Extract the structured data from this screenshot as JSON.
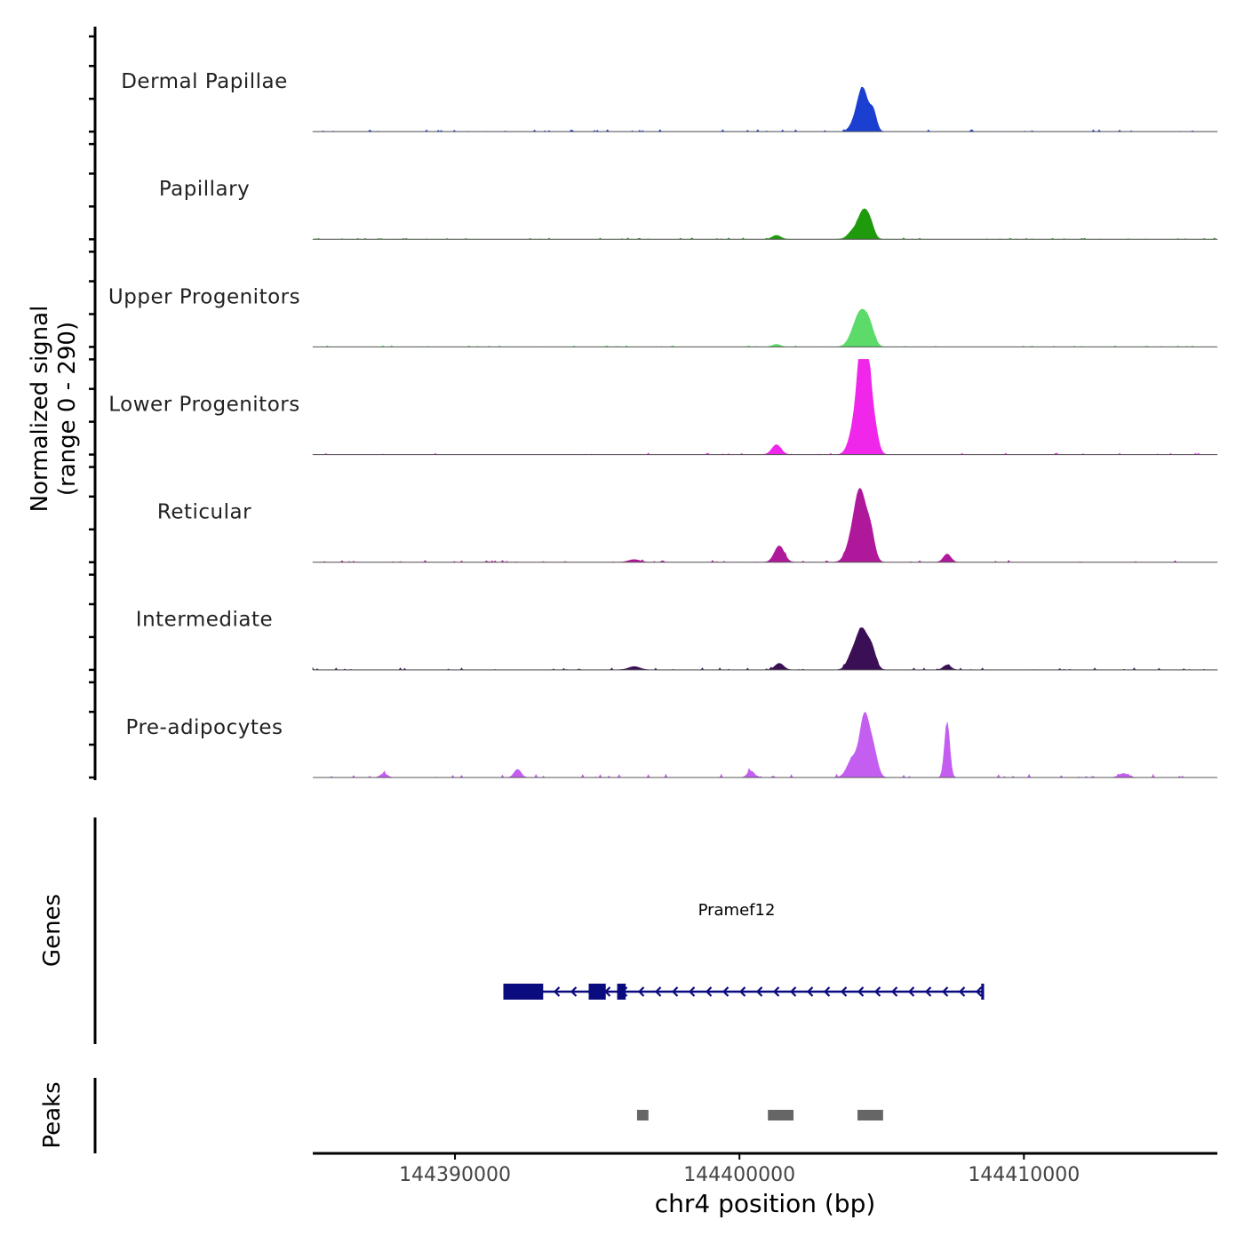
{
  "chart_data": {
    "type": "area",
    "title": "",
    "region": {
      "chrom": "chr4",
      "start": 144385000,
      "end": 144416800
    },
    "xlabel": "chr4 position (bp)",
    "x_ticks": [
      144390000,
      144400000,
      144410000
    ],
    "x_tick_labels": [
      "144390000",
      "144400000",
      "144410000"
    ],
    "ylabel_line1": "Normalized signal",
    "ylabel_line2": "(range 0 - 290)",
    "ylim": [
      0,
      290
    ],
    "coverage_tracks": [
      {
        "name": "Dermal Papillae",
        "color": "#1a3fd1",
        "noise": 6,
        "peaks": [
          {
            "pos": 144404350,
            "height": 120,
            "width": 170
          },
          {
            "pos": 144404700,
            "height": 60,
            "width": 120
          },
          {
            "pos": 144404100,
            "height": 35,
            "width": 180
          }
        ]
      },
      {
        "name": "Papillary",
        "color": "#1e9a0c",
        "noise": 4,
        "peaks": [
          {
            "pos": 144404350,
            "height": 80,
            "width": 170
          },
          {
            "pos": 144404600,
            "height": 40,
            "width": 140
          },
          {
            "pos": 144404000,
            "height": 25,
            "width": 180
          },
          {
            "pos": 144401300,
            "height": 12,
            "width": 150
          }
        ]
      },
      {
        "name": "Upper Progenitors",
        "color": "#5cdb6a",
        "noise": 4,
        "peaks": [
          {
            "pos": 144404300,
            "height": 100,
            "width": 220
          },
          {
            "pos": 144404600,
            "height": 40,
            "width": 160
          },
          {
            "pos": 144404000,
            "height": 25,
            "width": 200
          },
          {
            "pos": 144401300,
            "height": 8,
            "width": 140
          }
        ]
      },
      {
        "name": "Lower Progenitors",
        "color": "#f026ea",
        "noise": 5,
        "peaks": [
          {
            "pos": 144404300,
            "height": 280,
            "width": 170
          },
          {
            "pos": 144404450,
            "height": 210,
            "width": 140
          },
          {
            "pos": 144404700,
            "height": 100,
            "width": 150
          },
          {
            "pos": 144404000,
            "height": 60,
            "width": 180
          },
          {
            "pos": 144401300,
            "height": 30,
            "width": 160
          }
        ]
      },
      {
        "name": "Reticular",
        "color": "#b0189c",
        "noise": 6,
        "peaks": [
          {
            "pos": 144404250,
            "height": 200,
            "width": 190
          },
          {
            "pos": 144404600,
            "height": 90,
            "width": 150
          },
          {
            "pos": 144403950,
            "height": 60,
            "width": 200
          },
          {
            "pos": 144401400,
            "height": 50,
            "width": 170
          },
          {
            "pos": 144407300,
            "height": 25,
            "width": 130
          },
          {
            "pos": 144396300,
            "height": 8,
            "width": 200
          }
        ]
      },
      {
        "name": "Intermediate",
        "color": "#3b0f55",
        "noise": 6,
        "peaks": [
          {
            "pos": 144404300,
            "height": 120,
            "width": 190
          },
          {
            "pos": 144404650,
            "height": 60,
            "width": 150
          },
          {
            "pos": 144403950,
            "height": 40,
            "width": 170
          },
          {
            "pos": 144401400,
            "height": 20,
            "width": 150
          },
          {
            "pos": 144407300,
            "height": 15,
            "width": 130
          },
          {
            "pos": 144396300,
            "height": 10,
            "width": 200
          }
        ]
      },
      {
        "name": "Pre-adipocytes",
        "color": "#c35ef0",
        "noise": 10,
        "peaks": [
          {
            "pos": 144404400,
            "height": 180,
            "width": 160
          },
          {
            "pos": 144404700,
            "height": 80,
            "width": 150
          },
          {
            "pos": 144404000,
            "height": 60,
            "width": 200
          },
          {
            "pos": 144407300,
            "height": 170,
            "width": 90
          },
          {
            "pos": 144392200,
            "height": 25,
            "width": 120
          },
          {
            "pos": 144400400,
            "height": 20,
            "width": 120
          },
          {
            "pos": 144387500,
            "height": 12,
            "width": 120
          },
          {
            "pos": 144413500,
            "height": 12,
            "width": 160
          }
        ]
      }
    ],
    "genes_label": "Genes",
    "genes": [
      {
        "name": "Pramef12",
        "strand": "-",
        "start": 144391700,
        "end": 144408600,
        "color": "#0b0b80",
        "exons": [
          {
            "start": 144391700,
            "end": 144393100
          },
          {
            "start": 144394700,
            "end": 144395300
          },
          {
            "start": 144395700,
            "end": 144396000
          },
          {
            "start": 144408500,
            "end": 144408600
          }
        ]
      }
    ],
    "peaks_label": "Peaks",
    "peak_color": "#666666",
    "peaks": [
      {
        "start": 144396400,
        "end": 144396800
      },
      {
        "start": 144401000,
        "end": 144401900
      },
      {
        "start": 144404150,
        "end": 144405050
      }
    ]
  }
}
